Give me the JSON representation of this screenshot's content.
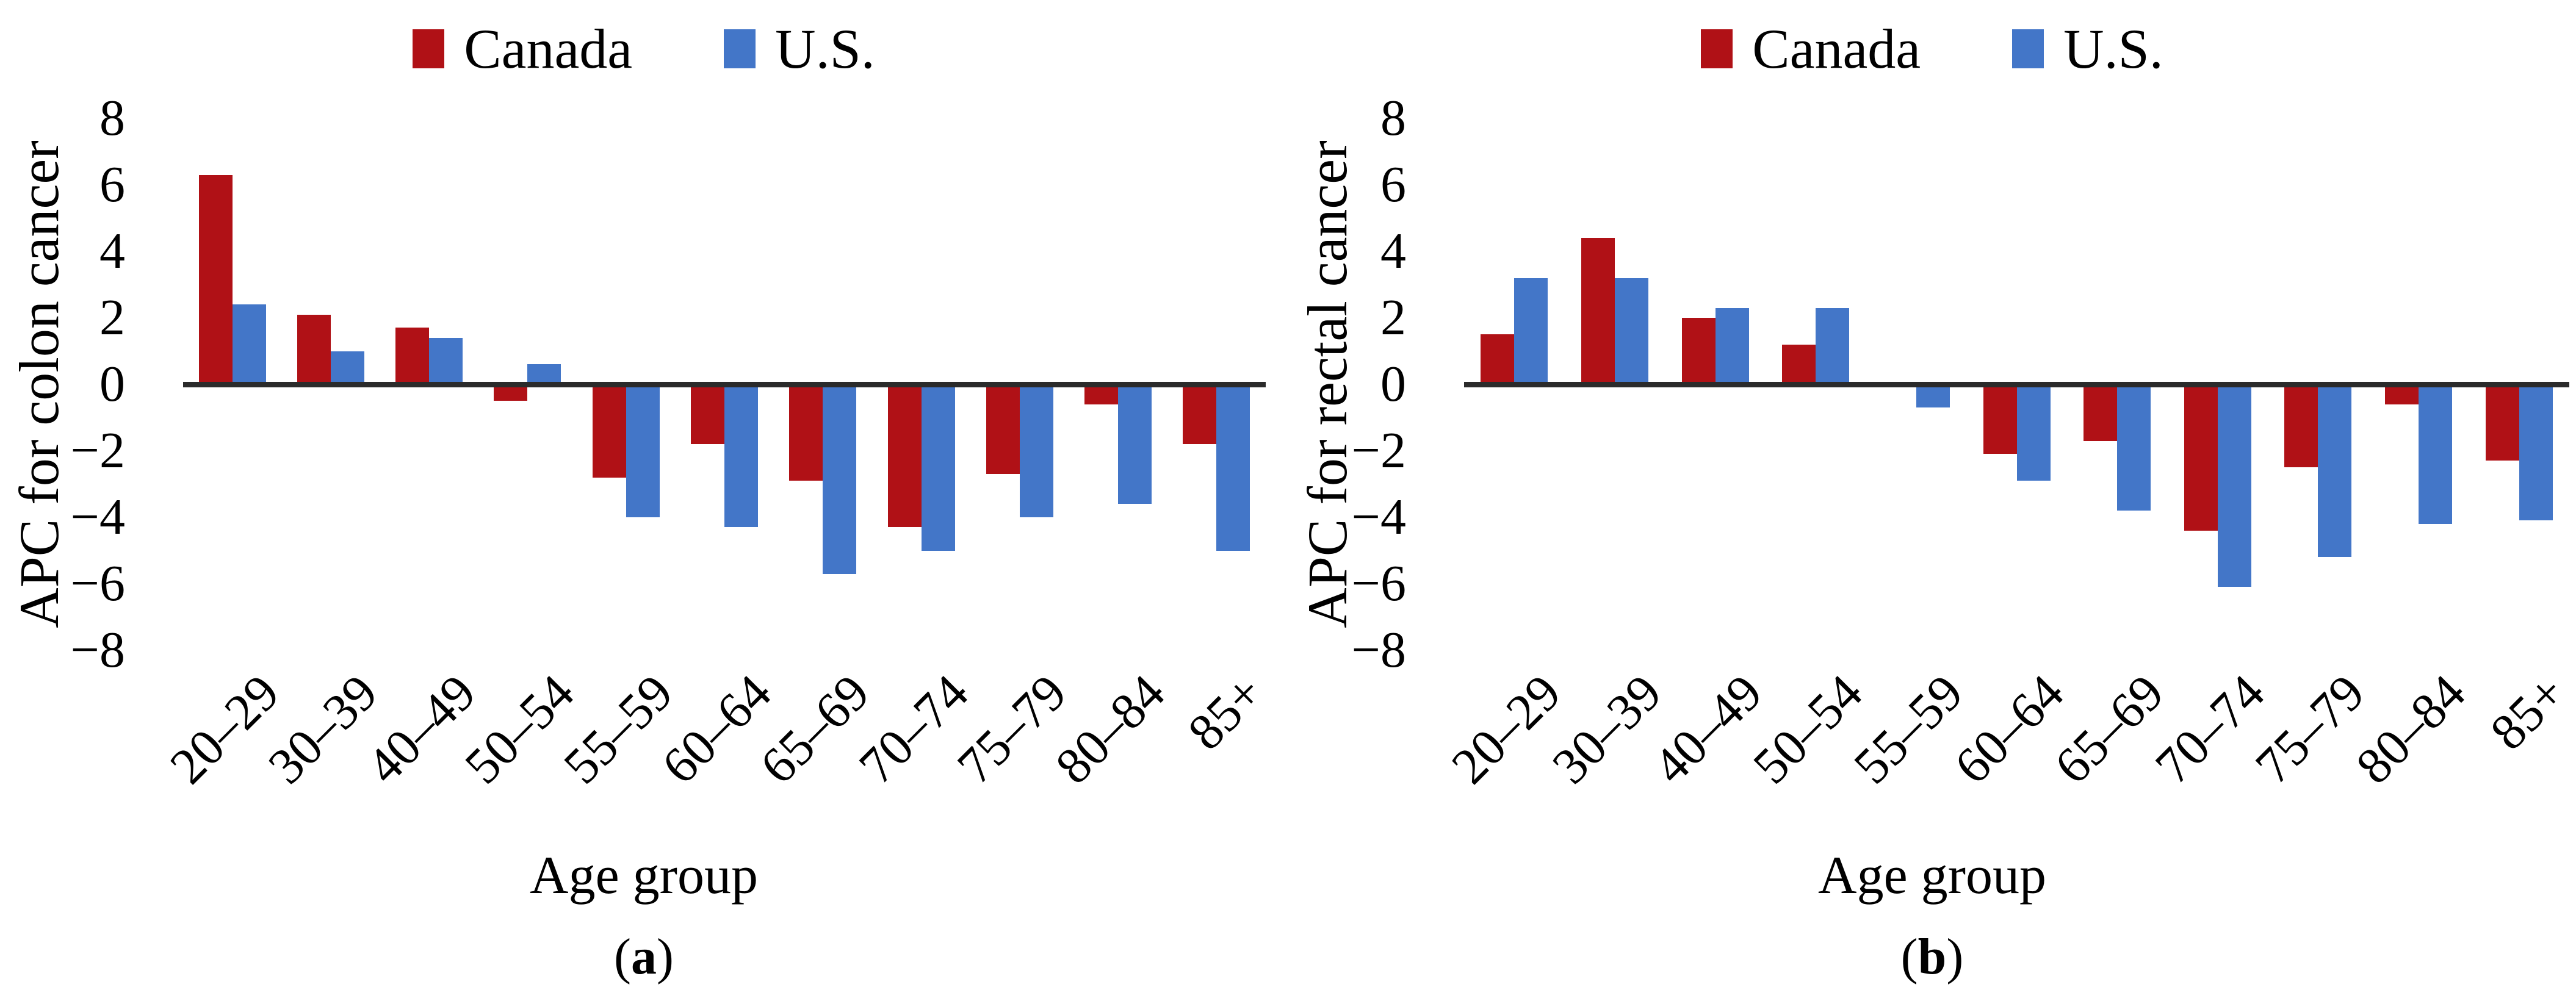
{
  "figure": {
    "colors": {
      "canada": "#B01116",
      "us": "#4376C8",
      "axis_line": "#2B2B2B",
      "text": "#000000",
      "background": "#ffffff"
    }
  },
  "chart_data": [
    {
      "type": "bar",
      "panel": "a",
      "caption": "a",
      "xlabel": "Age group",
      "ylabel": "APC for colon cancer",
      "ylim": [
        -8,
        8
      ],
      "ytick_step": 2,
      "grid": false,
      "legend_position": "top-center",
      "categories": [
        "20–29",
        "30–39",
        "40–49",
        "50–54",
        "55–59",
        "60–64",
        "65–69",
        "70–74",
        "75–79",
        "80–84",
        "85+"
      ],
      "series": [
        {
          "name": "Canada",
          "color": "#B01116",
          "values": [
            6.3,
            2.1,
            1.7,
            -0.5,
            -2.8,
            -1.8,
            -2.9,
            -4.3,
            -2.7,
            -0.6,
            -1.8
          ]
        },
        {
          "name": "U.S.",
          "color": "#4376C8",
          "values": [
            2.4,
            1.0,
            1.4,
            0.6,
            -4.0,
            -4.3,
            -5.7,
            -5.0,
            -4.0,
            -3.6,
            -5.0
          ]
        }
      ]
    },
    {
      "type": "bar",
      "panel": "b",
      "caption": "b",
      "xlabel": "Age group",
      "ylabel": "APC for rectal cancer",
      "ylim": [
        -8,
        8
      ],
      "ytick_step": 2,
      "grid": false,
      "legend_position": "top-center",
      "categories": [
        "20–29",
        "30–39",
        "40–49",
        "50–54",
        "55–59",
        "60–64",
        "65–69",
        "70–74",
        "75–79",
        "80–84",
        "85+"
      ],
      "series": [
        {
          "name": "Canada",
          "color": "#B01116",
          "values": [
            1.5,
            4.4,
            2.0,
            1.2,
            0,
            -2.1,
            -1.7,
            -4.4,
            -2.5,
            -0.6,
            -2.3
          ]
        },
        {
          "name": "U.S.",
          "color": "#4376C8",
          "values": [
            3.2,
            3.2,
            2.3,
            2.3,
            -0.7,
            -2.9,
            -3.8,
            -6.1,
            -5.2,
            -4.2,
            -4.1
          ]
        }
      ]
    }
  ]
}
